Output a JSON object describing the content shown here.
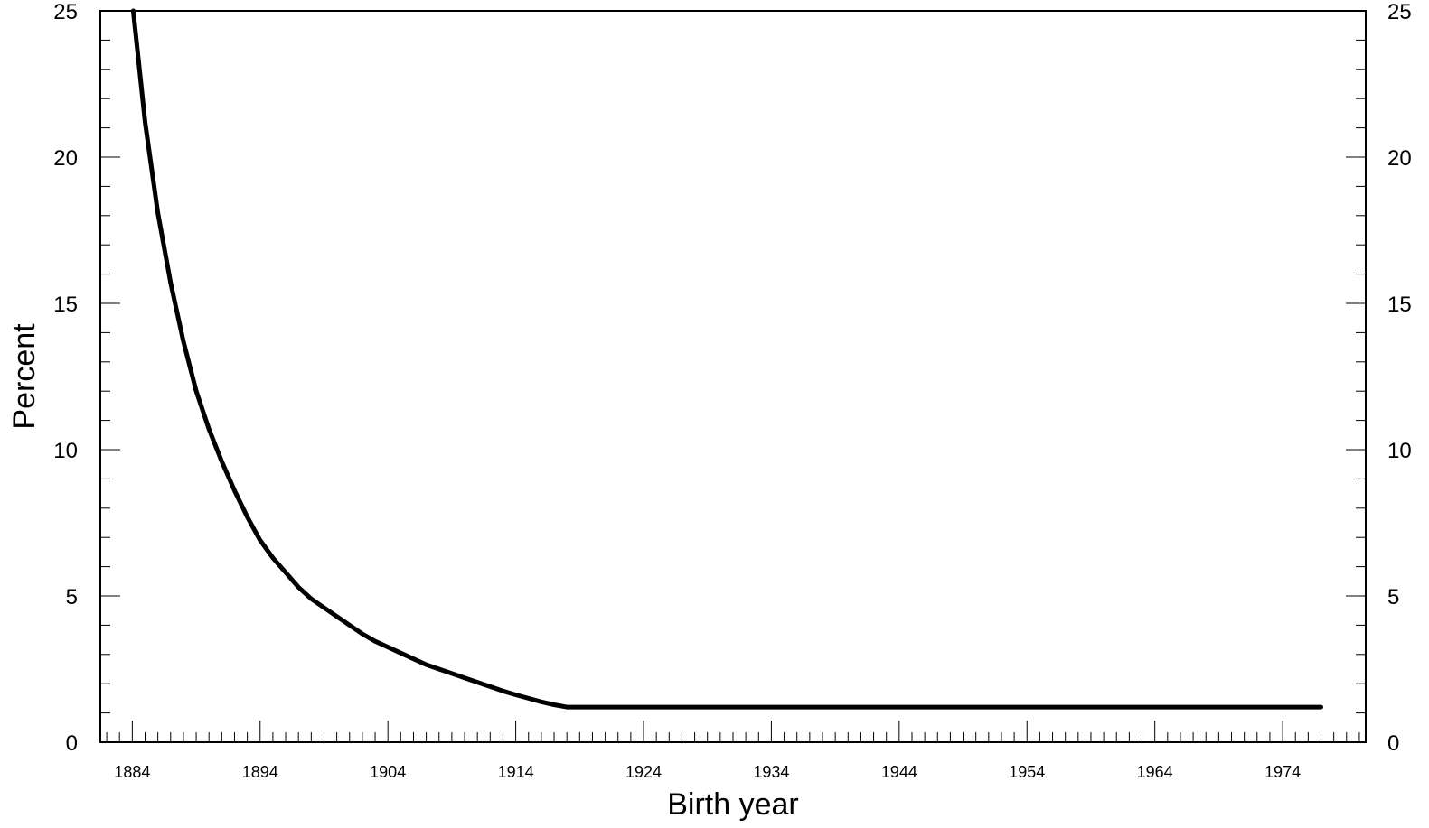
{
  "chart_data": {
    "type": "line",
    "title": "",
    "xlabel": "Birth year",
    "ylabel": "Percent",
    "xlim": [
      1881.5,
      1980.5
    ],
    "ylim": [
      0,
      25
    ],
    "x_ticks": [
      1884,
      1894,
      1904,
      1914,
      1924,
      1934,
      1944,
      1954,
      1964,
      1974
    ],
    "y_ticks": [
      0,
      5,
      10,
      15,
      20,
      25
    ],
    "y_ticks_right": [
      0,
      5,
      10,
      15,
      20,
      25
    ],
    "x_minor_step": 1,
    "y_minor_step": 1,
    "grid": false,
    "line_color": "#000000",
    "series": [
      {
        "x": [
          1884,
          1885,
          1886,
          1887,
          1888,
          1889,
          1890,
          1891,
          1892,
          1893,
          1894,
          1895,
          1896,
          1897,
          1898,
          1899,
          1900,
          1901,
          1902,
          1903,
          1904,
          1905,
          1906,
          1907,
          1908,
          1909,
          1910,
          1911,
          1912,
          1913,
          1914,
          1915,
          1916,
          1917,
          1918,
          1924,
          1934,
          1944,
          1954,
          1964,
          1974,
          1977
        ],
        "values": [
          25.3,
          21.2,
          18.1,
          15.7,
          13.7,
          12.0,
          10.7,
          9.6,
          8.6,
          7.7,
          6.9,
          6.3,
          5.8,
          5.3,
          4.9,
          4.6,
          4.3,
          4.0,
          3.7,
          3.45,
          3.25,
          3.05,
          2.85,
          2.65,
          2.5,
          2.35,
          2.2,
          2.05,
          1.9,
          1.75,
          1.62,
          1.5,
          1.38,
          1.28,
          1.2,
          1.2,
          1.2,
          1.2,
          1.2,
          1.2,
          1.2,
          1.2
        ]
      }
    ]
  }
}
